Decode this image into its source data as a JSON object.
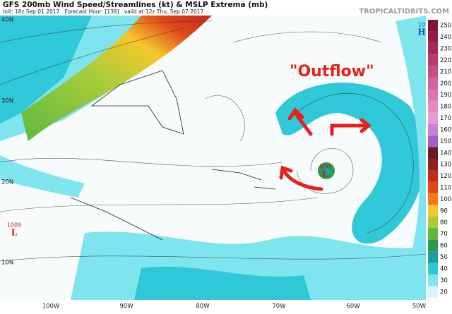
{
  "header": {
    "title": "GFS 200mb Wind Speed/Streamlines (kt) & MSLP Extrema (mb)",
    "subtitle": "Init: 18z Sep 01 2017   Forecast Hour: [138]   valid at 12z Thu, Sep 07 2017",
    "source": "TROPICALTIDBITS.COM"
  },
  "map": {
    "annotation": "\"Outflow\"",
    "lat_labels": [
      "40N",
      "30N",
      "20N",
      "10N"
    ],
    "lon_labels": [
      "100W",
      "90W",
      "80W",
      "70W",
      "60W",
      "50W"
    ],
    "extrema": [
      {
        "value": "1009",
        "symbol": "L",
        "color": "#c0201c"
      },
      {
        "value": "930",
        "symbol": "L",
        "color": "#c0201c"
      },
      {
        "value": "10",
        "symbol": "H",
        "color": "#1f4fc0"
      }
    ]
  },
  "colorbar": {
    "ticks": [
      250,
      240,
      230,
      220,
      210,
      200,
      190,
      180,
      170,
      160,
      150,
      140,
      130,
      120,
      110,
      100,
      90,
      80,
      70,
      60,
      50,
      40,
      30,
      20
    ],
    "colors": [
      "#7d1530",
      "#951c45",
      "#a8285c",
      "#b83a72",
      "#c64e88",
      "#d2629c",
      "#dc76ae",
      "#e48abf",
      "#e89ccd",
      "#c882d8",
      "#a060c8",
      "#6a1c28",
      "#8c2418",
      "#c42a16",
      "#e0481a",
      "#f07a1c",
      "#f4c82a",
      "#a8cc3a",
      "#5cb840",
      "#2c9a48",
      "#1aa0a0",
      "#2ec8d8",
      "#7ee4ee",
      "#d6f6fa"
    ]
  }
}
